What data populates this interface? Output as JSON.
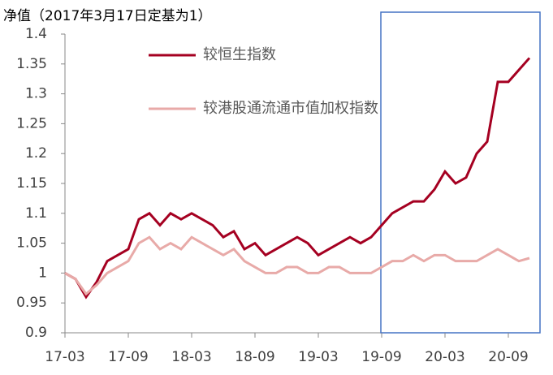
{
  "chart_data": {
    "type": "line",
    "title": "净值（2017年3月17日定基为1）",
    "x": [
      "17-03",
      "17-04",
      "17-05",
      "17-06",
      "17-07",
      "17-08",
      "17-09",
      "17-10",
      "17-11",
      "17-12",
      "18-01",
      "18-02",
      "18-03",
      "18-04",
      "18-05",
      "18-06",
      "18-07",
      "18-08",
      "18-09",
      "18-10",
      "18-11",
      "18-12",
      "19-01",
      "19-02",
      "19-03",
      "19-04",
      "19-05",
      "19-06",
      "19-07",
      "19-08",
      "19-09",
      "19-10",
      "19-11",
      "19-12",
      "20-01",
      "20-02",
      "20-03",
      "20-04",
      "20-05",
      "20-06",
      "20-07",
      "20-08",
      "20-09",
      "20-10",
      "20-11"
    ],
    "series": [
      {
        "name": "较恒生指数",
        "color": "#a50021",
        "values": [
          1.0,
          0.99,
          0.96,
          0.985,
          1.02,
          1.03,
          1.04,
          1.09,
          1.1,
          1.08,
          1.1,
          1.09,
          1.1,
          1.09,
          1.08,
          1.06,
          1.07,
          1.04,
          1.05,
          1.03,
          1.04,
          1.05,
          1.06,
          1.05,
          1.03,
          1.04,
          1.05,
          1.06,
          1.05,
          1.06,
          1.08,
          1.1,
          1.11,
          1.12,
          1.12,
          1.14,
          1.17,
          1.15,
          1.16,
          1.2,
          1.22,
          1.32,
          1.32,
          1.34,
          1.36
        ]
      },
      {
        "name": "较港股通流通市值加权指数",
        "color": "#e8aaa8",
        "values": [
          1.0,
          0.99,
          0.965,
          0.98,
          1.0,
          1.01,
          1.02,
          1.05,
          1.06,
          1.04,
          1.05,
          1.04,
          1.06,
          1.05,
          1.04,
          1.03,
          1.04,
          1.02,
          1.01,
          1.0,
          1.0,
          1.01,
          1.01,
          1.0,
          1.0,
          1.01,
          1.01,
          1.0,
          1.0,
          1.0,
          1.01,
          1.02,
          1.02,
          1.03,
          1.02,
          1.03,
          1.03,
          1.02,
          1.02,
          1.02,
          1.03,
          1.04,
          1.03,
          1.02,
          1.025
        ]
      }
    ],
    "xlim": [
      "17-03",
      "20-11"
    ],
    "xticks": [
      "17-03",
      "17-09",
      "18-03",
      "18-09",
      "19-03",
      "19-09",
      "20-03",
      "20-09"
    ],
    "ylim": [
      0.9,
      1.4
    ],
    "yticks": [
      0.9,
      0.95,
      1,
      1.05,
      1.1,
      1.15,
      1.2,
      1.25,
      1.3,
      1.35,
      1.4
    ],
    "legend": "upper left"
  }
}
